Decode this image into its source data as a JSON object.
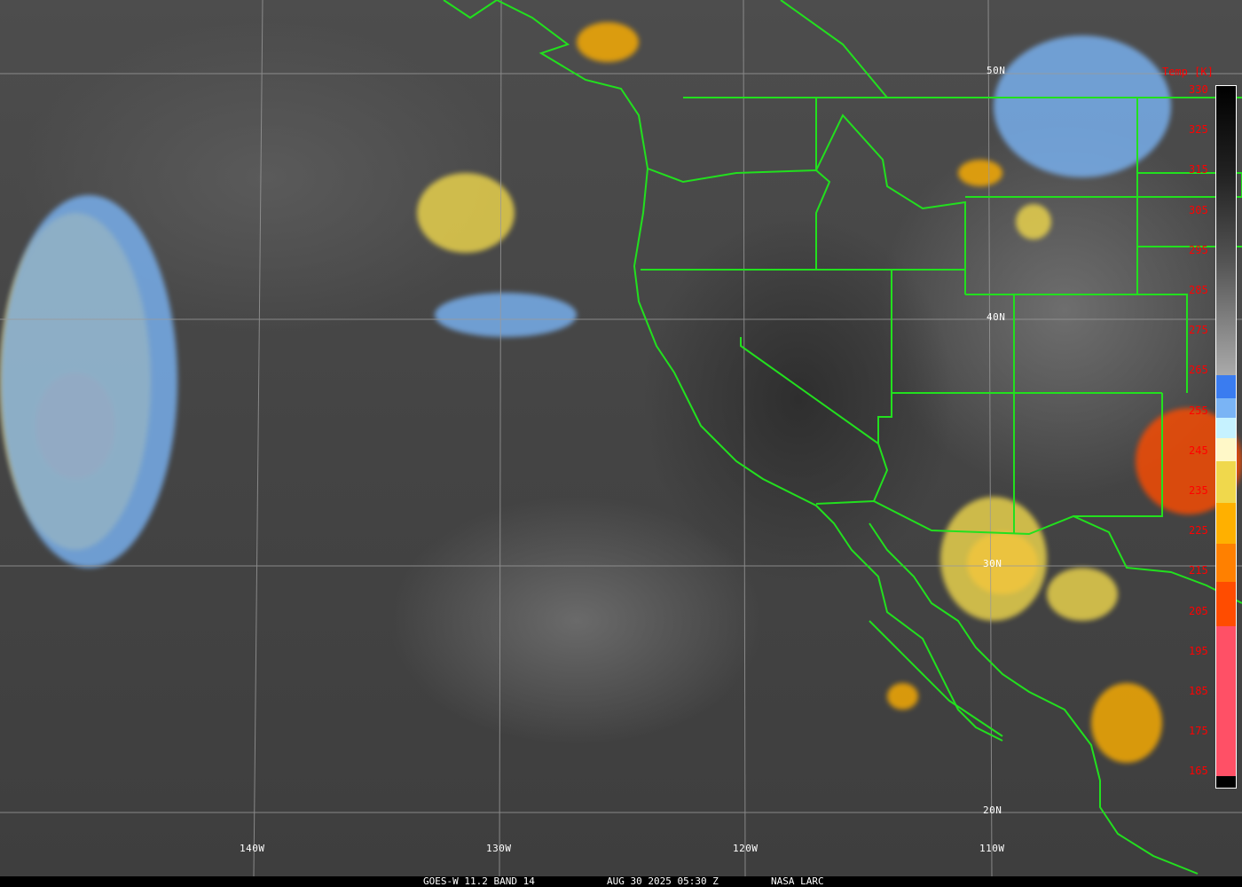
{
  "caption": {
    "satellite": "GOES-W 11.2 BAND 14",
    "datetime": "AUG 30 2025 05:30 Z",
    "source": "NASA LARC"
  },
  "grid": {
    "latitudes": [
      "50N",
      "40N",
      "30N",
      "20N"
    ],
    "longitudes": [
      "140W",
      "130W",
      "120W",
      "110W"
    ]
  },
  "colorbar": {
    "title": "Temp [K]",
    "labels": [
      "330",
      "325",
      "315",
      "305",
      "295",
      "285",
      "275",
      "265",
      "255",
      "245",
      "235",
      "225",
      "215",
      "205",
      "195",
      "185",
      "175",
      "165"
    ],
    "colors": {
      "blue": "#3a7cf0",
      "light_blue": "#7ab4f5",
      "pale_cyan": "#c6f2ff",
      "cream": "#fff8c8",
      "yellow": "#f0d84c",
      "orange_yellow": "#ffb000",
      "orange": "#ff8000",
      "red_orange": "#ff4c00",
      "pink": "#ff5066"
    }
  },
  "boundary_color": "#22e01e"
}
